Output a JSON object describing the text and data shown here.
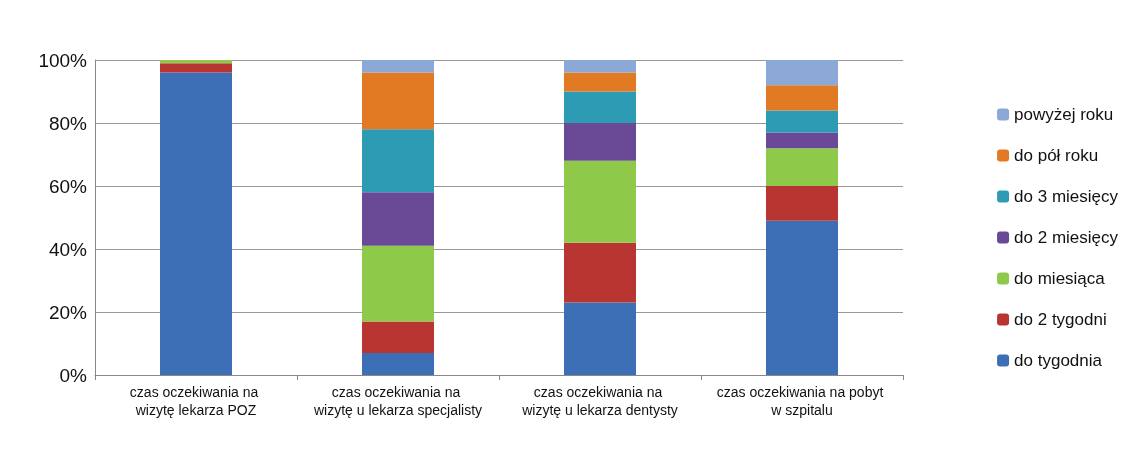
{
  "chart_data": {
    "type": "bar",
    "stacked": true,
    "categories": [
      "czas oczekiwania na wizytę lekarza POZ",
      "czas oczekiwania na wizytę u lekarza specjalisty",
      "czas oczekiwania na wizytę u lekarza dentysty",
      "czas oczekiwania na pobyt w szpitalu"
    ],
    "series": [
      {
        "name": "do tygodnia",
        "color": "#3c6fb5",
        "values": [
          96,
          7,
          23,
          49
        ]
      },
      {
        "name": "do 2 tygodni",
        "color": "#b83532",
        "values": [
          3,
          10,
          19,
          11
        ]
      },
      {
        "name": "do miesiąca",
        "color": "#8ec94a",
        "values": [
          1,
          24,
          26,
          12
        ]
      },
      {
        "name": "do 2 miesięcy",
        "color": "#6a4a96",
        "values": [
          0,
          17,
          12,
          5
        ]
      },
      {
        "name": "do 3 miesięcy",
        "color": "#2d9bb3",
        "values": [
          0,
          20,
          10,
          7
        ]
      },
      {
        "name": "do pół roku",
        "color": "#e27a24",
        "values": [
          0,
          18,
          6,
          8
        ]
      },
      {
        "name": "powyżej roku",
        "color": "#8ca8d6",
        "values": [
          0,
          4,
          4,
          8
        ]
      }
    ],
    "ylim": [
      0,
      100
    ],
    "yticks": [
      {
        "value": 0,
        "label": "0%"
      },
      {
        "value": 20,
        "label": "20%"
      },
      {
        "value": 40,
        "label": "40%"
      },
      {
        "value": 60,
        "label": "60%"
      },
      {
        "value": 80,
        "label": "80%"
      },
      {
        "value": 100,
        "label": "100%"
      }
    ],
    "grid": "y",
    "legend": "right"
  }
}
